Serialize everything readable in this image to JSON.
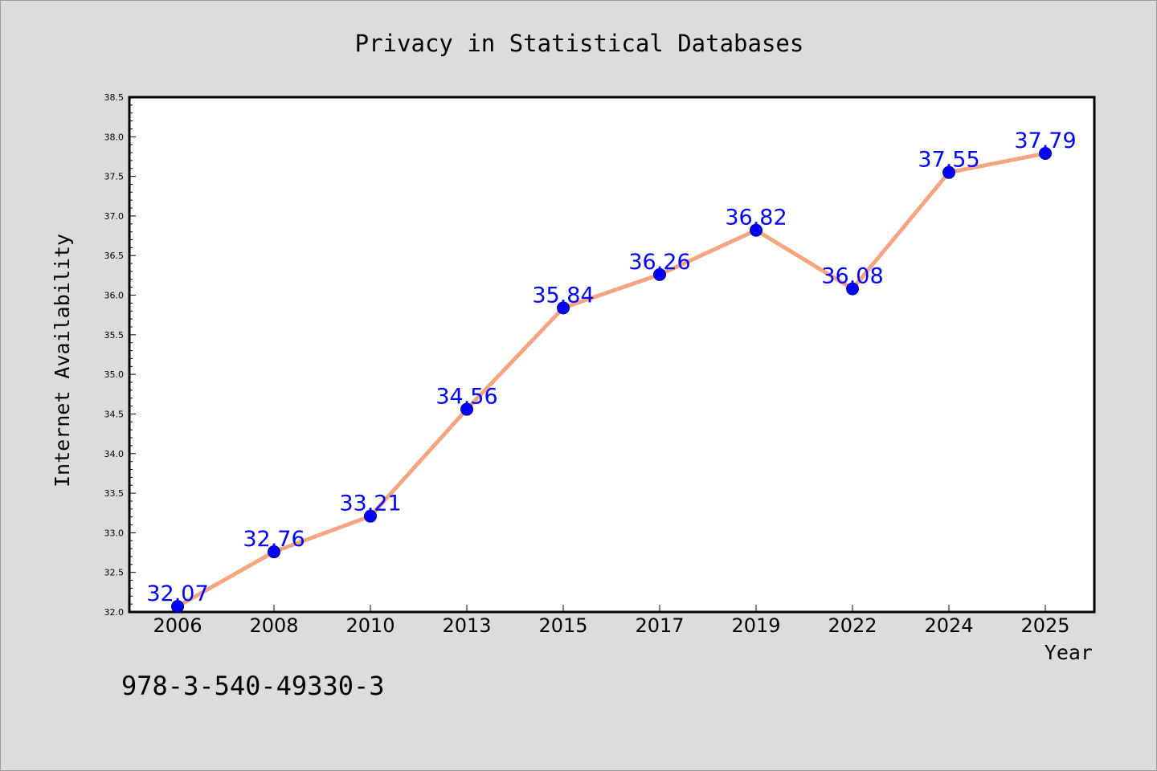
{
  "chart_data": {
    "type": "line",
    "title": "Privacy in Statistical Databases",
    "xlabel": "Year",
    "ylabel": "Internet Availability",
    "categories": [
      "2006",
      "2008",
      "2010",
      "2013",
      "2015",
      "2017",
      "2019",
      "2022",
      "2024",
      "2025"
    ],
    "series": [
      {
        "values": [
          32.07,
          32.76,
          33.21,
          34.56,
          35.84,
          36.26,
          36.82,
          36.08,
          37.55,
          37.79
        ]
      }
    ],
    "data_labels": [
      "32.07",
      "32.76",
      "33.21",
      "34.56",
      "35.84",
      "36.26",
      "36.82",
      "36.08",
      "37.55",
      "37.79"
    ],
    "ylim": [
      32.0,
      38.5
    ],
    "yticks": [
      "32.0",
      "32.5",
      "33.0",
      "33.5",
      "34.0",
      "34.5",
      "35.0",
      "35.5",
      "36.0",
      "36.5",
      "37.0",
      "37.5",
      "38.0",
      "38.5"
    ],
    "grid": false,
    "line_color": "#f4a582",
    "marker_color": "#0000ff",
    "label_color": "#0000ff",
    "plot_background": "#ffffff",
    "figure_background": "#dcdcdc"
  },
  "footnote": "978-3-540-49330-3"
}
